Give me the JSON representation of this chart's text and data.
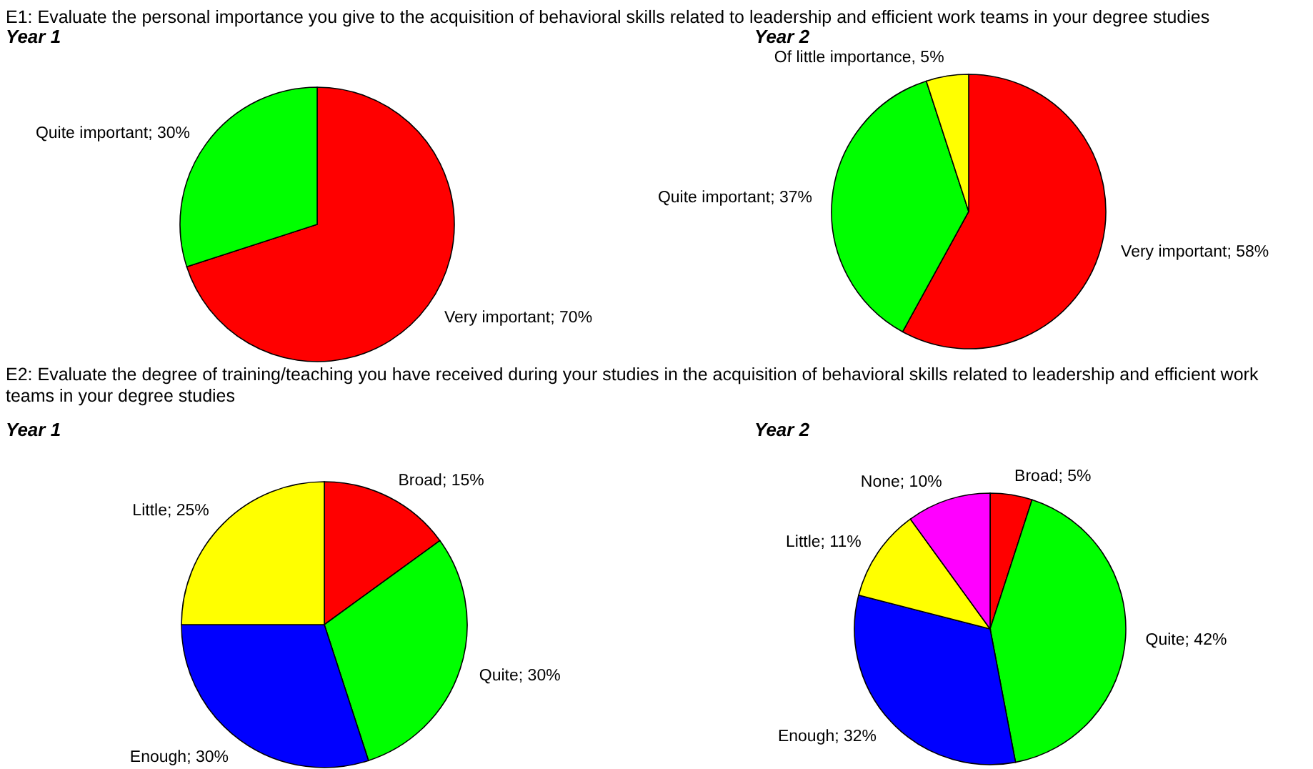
{
  "chart_data": [
    {
      "type": "pie",
      "title": "E1: Evaluate the personal importance you give to the acquisition of behavioral skills related to leadership and efficient work teams in your degree studies",
      "subtitle": "Year 1",
      "categories": [
        "Very important",
        "Quite important"
      ],
      "values": [
        70,
        30
      ],
      "colors": [
        "#ff0000",
        "#00ff00"
      ],
      "value_labels": [
        "; 70%",
        "; 30%"
      ]
    },
    {
      "type": "pie",
      "subtitle": "Year 2",
      "categories": [
        "Very important",
        "Quite important",
        "Of little importance"
      ],
      "values": [
        58,
        37,
        5
      ],
      "colors": [
        "#ff0000",
        "#00ff00",
        "#ffff00"
      ],
      "value_labels": [
        "; 58%",
        "; 37%",
        ", 5%"
      ]
    },
    {
      "type": "pie",
      "title": "E2: Evaluate the degree of training/teaching you have received during your studies in the acquisition of behavioral skills related to leadership and efficient work teams in your degree studies",
      "subtitle": "Year 1",
      "categories": [
        "Broad",
        "Quite",
        "Enough",
        "Little"
      ],
      "values": [
        15,
        30,
        30,
        25
      ],
      "colors": [
        "#ff0000",
        "#00ff00",
        "#0000ff",
        "#ffff00"
      ],
      "value_labels": [
        "; 15%",
        "; 30%",
        "; 30%",
        "; 25%"
      ]
    },
    {
      "type": "pie",
      "subtitle": "Year 2",
      "categories": [
        "Broad",
        "Quite",
        "Enough",
        "Little",
        "None"
      ],
      "values": [
        5,
        42,
        32,
        11,
        10
      ],
      "colors": [
        "#ff0000",
        "#00ff00",
        "#0000ff",
        "#ffff00",
        "#ff00ff"
      ],
      "value_labels": [
        "; 5%",
        "; 42%",
        "; 32%",
        "; 11%",
        "; 10%"
      ]
    }
  ]
}
